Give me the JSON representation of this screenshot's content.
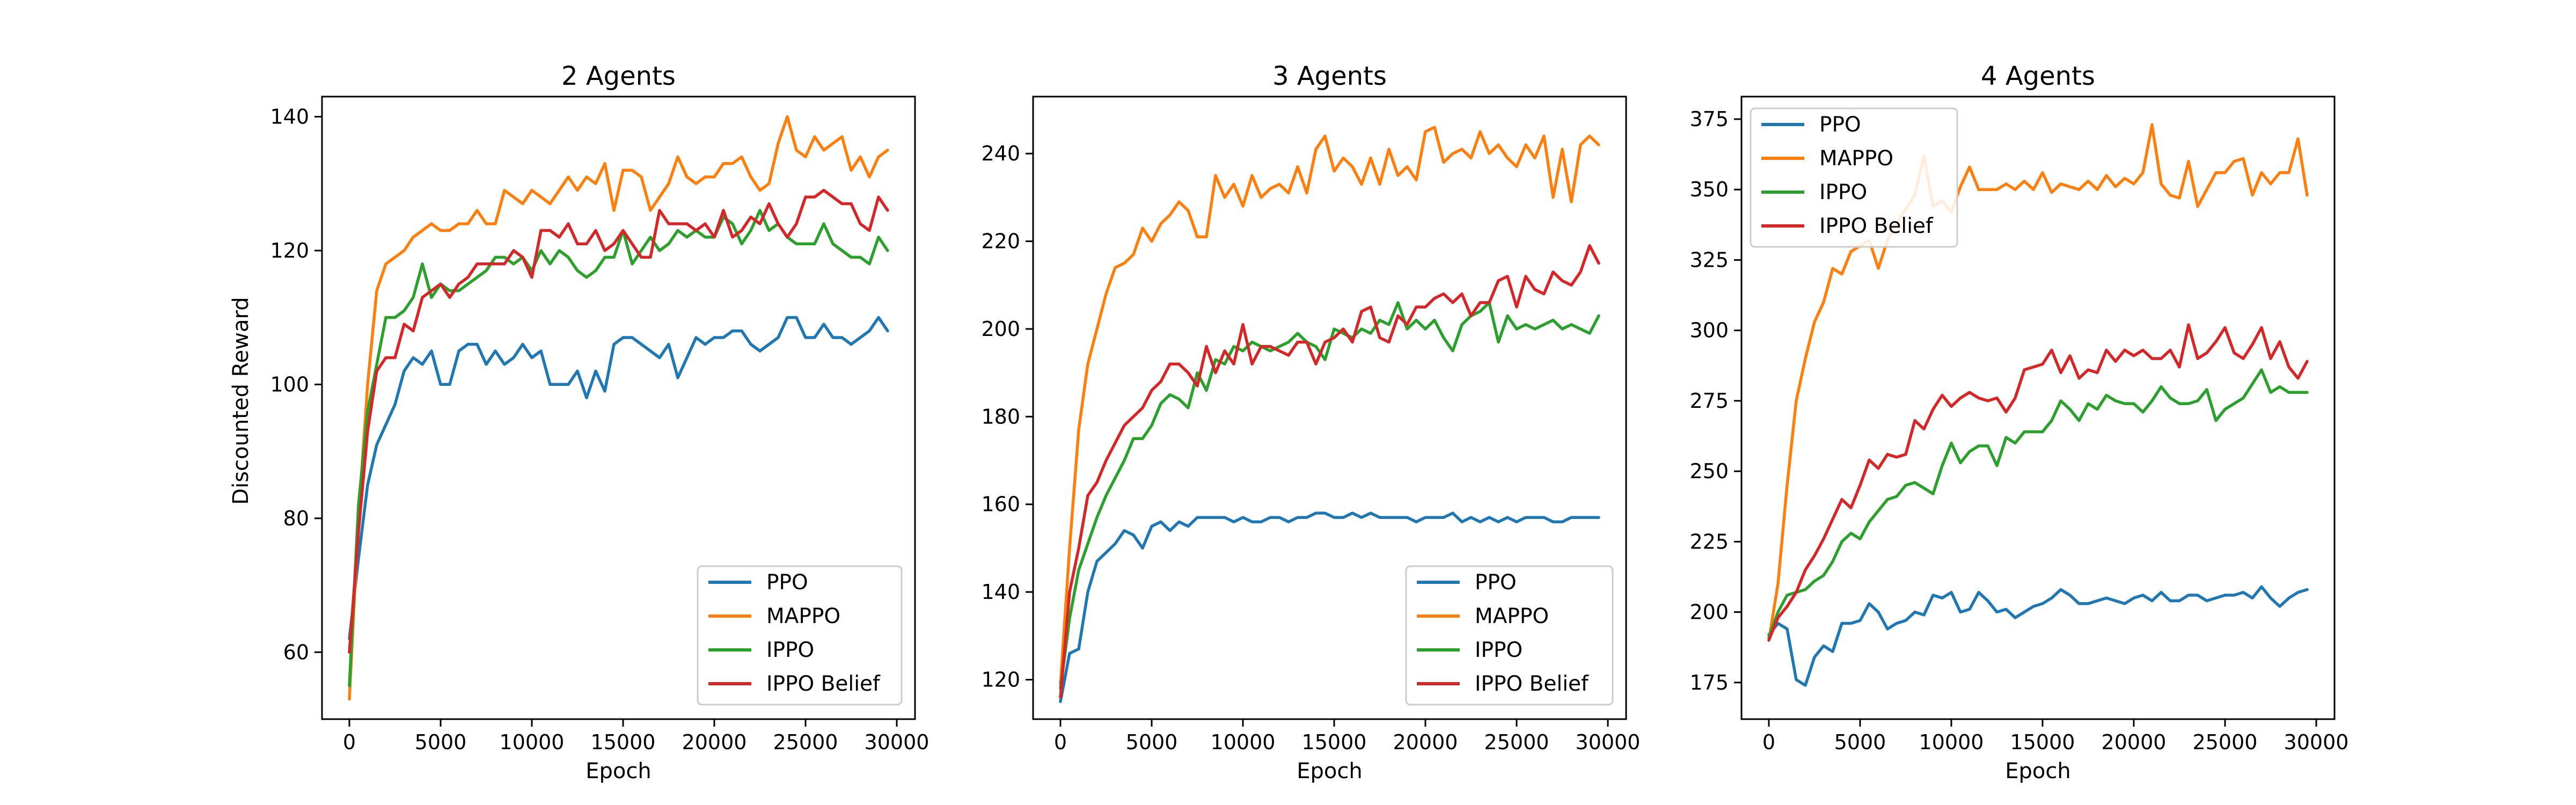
{
  "figure": {
    "xlabel": "Epoch",
    "ylabel": "Discounted Reward"
  },
  "colors": {
    "PPO": "#1f77b4",
    "MAPPO": "#ff7f0e",
    "IPPO": "#2ca02c",
    "IPPO Belief": "#d62728"
  },
  "chart_data": [
    {
      "type": "line",
      "title": "2 Agents",
      "xlabel": "Epoch",
      "ylabel": "Discounted Reward",
      "xlim": [
        -1500,
        31000
      ],
      "ylim": [
        50,
        143
      ],
      "xticks": [
        0,
        5000,
        10000,
        15000,
        20000,
        25000,
        30000
      ],
      "yticks": [
        60,
        80,
        100,
        120,
        140
      ],
      "legend_position": "lower-right",
      "x": [
        0,
        500,
        1000,
        1500,
        2000,
        2500,
        3000,
        3500,
        4000,
        4500,
        5000,
        5500,
        6000,
        6500,
        7000,
        7500,
        8000,
        8500,
        9000,
        9500,
        10000,
        10500,
        11000,
        11500,
        12000,
        12500,
        13000,
        13500,
        14000,
        14500,
        15000,
        15500,
        16000,
        16500,
        17000,
        17500,
        18000,
        18500,
        19000,
        19500,
        20000,
        20500,
        21000,
        21500,
        22000,
        22500,
        23000,
        23500,
        24000,
        24500,
        25000,
        25500,
        26000,
        26500,
        27000,
        27500,
        28000,
        28500,
        29000,
        29500
      ],
      "series": [
        {
          "name": "PPO",
          "values": [
            62,
            74,
            85,
            91,
            94,
            97,
            102,
            104,
            103,
            105,
            100,
            100,
            105,
            106,
            106,
            103,
            105,
            103,
            104,
            106,
            104,
            105,
            100,
            100,
            100,
            102,
            98,
            102,
            99,
            106,
            107,
            107,
            106,
            105,
            104,
            106,
            101,
            104,
            107,
            106,
            107,
            107,
            108,
            108,
            106,
            105,
            106,
            107,
            110,
            110,
            107,
            107,
            109,
            107,
            107,
            106,
            107,
            108,
            110,
            108
          ]
        },
        {
          "name": "MAPPO",
          "values": [
            53,
            80,
            100,
            114,
            118,
            119,
            120,
            122,
            123,
            124,
            123,
            123,
            124,
            124,
            126,
            124,
            124,
            129,
            128,
            127,
            129,
            128,
            127,
            129,
            131,
            129,
            131,
            130,
            133,
            126,
            132,
            132,
            131,
            126,
            128,
            130,
            134,
            131,
            130,
            131,
            131,
            133,
            133,
            134,
            131,
            129,
            130,
            136,
            140,
            135,
            134,
            137,
            135,
            136,
            137,
            132,
            134,
            131,
            134,
            135
          ]
        },
        {
          "name": "IPPO",
          "values": [
            55,
            82,
            96,
            103,
            110,
            110,
            111,
            113,
            118,
            113,
            115,
            114,
            114,
            115,
            116,
            117,
            119,
            119,
            118,
            119,
            117,
            120,
            118,
            120,
            119,
            117,
            116,
            117,
            119,
            119,
            123,
            118,
            120,
            122,
            120,
            121,
            123,
            122,
            123,
            122,
            122,
            125,
            124,
            121,
            123,
            126,
            123,
            124,
            122,
            121,
            121,
            121,
            124,
            121,
            120,
            119,
            119,
            118,
            122,
            120
          ]
        },
        {
          "name": "IPPO Belief",
          "values": [
            60,
            78,
            93,
            102,
            104,
            104,
            109,
            108,
            113,
            114,
            115,
            113,
            115,
            116,
            118,
            118,
            118,
            118,
            120,
            119,
            116,
            123,
            123,
            122,
            124,
            121,
            121,
            123,
            120,
            121,
            123,
            121,
            119,
            119,
            126,
            124,
            124,
            124,
            123,
            124,
            122,
            126,
            122,
            123,
            125,
            124,
            127,
            124,
            122,
            124,
            128,
            128,
            129,
            128,
            127,
            127,
            124,
            123,
            128,
            126
          ]
        }
      ]
    },
    {
      "type": "line",
      "title": "3 Agents",
      "xlabel": "Epoch",
      "ylabel": "",
      "xlim": [
        -1500,
        31000
      ],
      "ylim": [
        111,
        253
      ],
      "xticks": [
        0,
        5000,
        10000,
        15000,
        20000,
        25000,
        30000
      ],
      "yticks": [
        120,
        140,
        160,
        180,
        200,
        220,
        240
      ],
      "legend_position": "lower-right",
      "x": [
        0,
        500,
        1000,
        1500,
        2000,
        2500,
        3000,
        3500,
        4000,
        4500,
        5000,
        5500,
        6000,
        6500,
        7000,
        7500,
        8000,
        8500,
        9000,
        9500,
        10000,
        10500,
        11000,
        11500,
        12000,
        12500,
        13000,
        13500,
        14000,
        14500,
        15000,
        15500,
        16000,
        16500,
        17000,
        17500,
        18000,
        18500,
        19000,
        19500,
        20000,
        20500,
        21000,
        21500,
        22000,
        22500,
        23000,
        23500,
        24000,
        24500,
        25000,
        25500,
        26000,
        26500,
        27000,
        27500,
        28000,
        28500,
        29000,
        29500
      ],
      "series": [
        {
          "name": "PPO",
          "values": [
            115,
            126,
            127,
            140,
            147,
            149,
            151,
            154,
            153,
            150,
            155,
            156,
            154,
            156,
            155,
            157,
            157,
            157,
            157,
            156,
            157,
            156,
            156,
            157,
            157,
            156,
            157,
            157,
            158,
            158,
            157,
            157,
            158,
            157,
            158,
            157,
            157,
            157,
            157,
            156,
            157,
            157,
            157,
            158,
            156,
            157,
            156,
            157,
            156,
            157,
            156,
            157,
            157,
            157,
            156,
            156,
            157,
            157,
            157,
            157
          ]
        },
        {
          "name": "MAPPO",
          "values": [
            119,
            150,
            177,
            192,
            200,
            208,
            214,
            215,
            217,
            223,
            220,
            224,
            226,
            229,
            227,
            221,
            221,
            235,
            230,
            233,
            228,
            235,
            230,
            232,
            233,
            231,
            237,
            231,
            241,
            244,
            236,
            239,
            237,
            233,
            239,
            233,
            241,
            235,
            237,
            234,
            245,
            246,
            238,
            240,
            241,
            239,
            245,
            240,
            242,
            239,
            237,
            242,
            239,
            244,
            230,
            241,
            229,
            242,
            244,
            242
          ]
        },
        {
          "name": "IPPO",
          "values": [
            118,
            134,
            145,
            151,
            157,
            162,
            166,
            170,
            175,
            175,
            178,
            183,
            185,
            184,
            182,
            190,
            186,
            193,
            192,
            196,
            195,
            197,
            196,
            195,
            196,
            197,
            199,
            197,
            196,
            193,
            200,
            199,
            198,
            200,
            199,
            202,
            201,
            206,
            200,
            202,
            200,
            202,
            198,
            195,
            201,
            203,
            204,
            206,
            197,
            203,
            200,
            201,
            200,
            201,
            202,
            200,
            201,
            200,
            199,
            203
          ]
        },
        {
          "name": "IPPO Belief",
          "values": [
            116,
            140,
            150,
            162,
            165,
            170,
            174,
            178,
            180,
            182,
            186,
            188,
            192,
            192,
            190,
            187,
            196,
            190,
            195,
            192,
            201,
            192,
            196,
            196,
            195,
            194,
            197,
            197,
            192,
            197,
            198,
            200,
            197,
            204,
            205,
            198,
            197,
            203,
            201,
            205,
            205,
            207,
            208,
            206,
            208,
            203,
            206,
            206,
            211,
            212,
            205,
            212,
            209,
            208,
            213,
            211,
            210,
            213,
            219,
            215
          ]
        }
      ]
    },
    {
      "type": "line",
      "title": "4 Agents",
      "xlabel": "Epoch",
      "ylabel": "",
      "xlim": [
        -1500,
        31000
      ],
      "ylim": [
        162,
        383
      ],
      "xticks": [
        0,
        5000,
        10000,
        15000,
        20000,
        25000,
        30000
      ],
      "yticks": [
        175,
        200,
        225,
        250,
        275,
        300,
        325,
        350,
        375
      ],
      "legend_position": "upper-left",
      "x": [
        0,
        500,
        1000,
        1500,
        2000,
        2500,
        3000,
        3500,
        4000,
        4500,
        5000,
        5500,
        6000,
        6500,
        7000,
        7500,
        8000,
        8500,
        9000,
        9500,
        10000,
        10500,
        11000,
        11500,
        12000,
        12500,
        13000,
        13500,
        14000,
        14500,
        15000,
        15500,
        16000,
        16500,
        17000,
        17500,
        18000,
        18500,
        19000,
        19500,
        20000,
        20500,
        21000,
        21500,
        22000,
        22500,
        23000,
        23500,
        24000,
        24500,
        25000,
        25500,
        26000,
        26500,
        27000,
        27500,
        28000,
        28500,
        29000,
        29500
      ],
      "series": [
        {
          "name": "PPO",
          "values": [
            192,
            196,
            194,
            176,
            174,
            184,
            188,
            186,
            196,
            196,
            197,
            203,
            200,
            194,
            196,
            197,
            200,
            199,
            206,
            205,
            207,
            200,
            201,
            207,
            204,
            200,
            201,
            198,
            200,
            202,
            203,
            205,
            208,
            206,
            203,
            203,
            204,
            205,
            204,
            203,
            205,
            206,
            204,
            207,
            204,
            204,
            206,
            206,
            204,
            205,
            206,
            206,
            207,
            205,
            209,
            205,
            202,
            205,
            207,
            208
          ]
        },
        {
          "name": "MAPPO",
          "values": [
            190,
            210,
            245,
            275,
            290,
            303,
            310,
            322,
            320,
            328,
            330,
            332,
            322,
            332,
            338,
            343,
            348,
            362,
            344,
            346,
            342,
            351,
            358,
            350,
            350,
            350,
            352,
            350,
            353,
            350,
            356,
            349,
            352,
            351,
            350,
            353,
            350,
            355,
            351,
            354,
            352,
            356,
            373,
            352,
            348,
            347,
            360,
            344,
            350,
            356,
            356,
            360,
            361,
            348,
            356,
            352,
            356,
            356,
            368,
            348
          ]
        },
        {
          "name": "IPPO",
          "values": [
            191,
            200,
            206,
            207,
            208,
            211,
            213,
            218,
            225,
            228,
            226,
            232,
            236,
            240,
            241,
            245,
            246,
            244,
            242,
            252,
            260,
            253,
            257,
            259,
            259,
            252,
            262,
            260,
            264,
            264,
            264,
            268,
            275,
            272,
            268,
            274,
            272,
            277,
            275,
            274,
            274,
            271,
            275,
            280,
            276,
            274,
            274,
            275,
            279,
            268,
            272,
            274,
            276,
            281,
            286,
            278,
            280,
            278,
            278,
            278
          ]
        },
        {
          "name": "IPPO Belief",
          "values": [
            190,
            198,
            202,
            207,
            215,
            220,
            226,
            233,
            240,
            237,
            245,
            254,
            251,
            256,
            255,
            256,
            268,
            265,
            272,
            277,
            273,
            276,
            278,
            276,
            275,
            276,
            271,
            276,
            286,
            287,
            288,
            293,
            285,
            291,
            283,
            286,
            285,
            293,
            289,
            293,
            291,
            293,
            290,
            290,
            293,
            287,
            302,
            290,
            292,
            296,
            301,
            292,
            290,
            295,
            301,
            290,
            296,
            287,
            283,
            289
          ]
        }
      ]
    }
  ]
}
